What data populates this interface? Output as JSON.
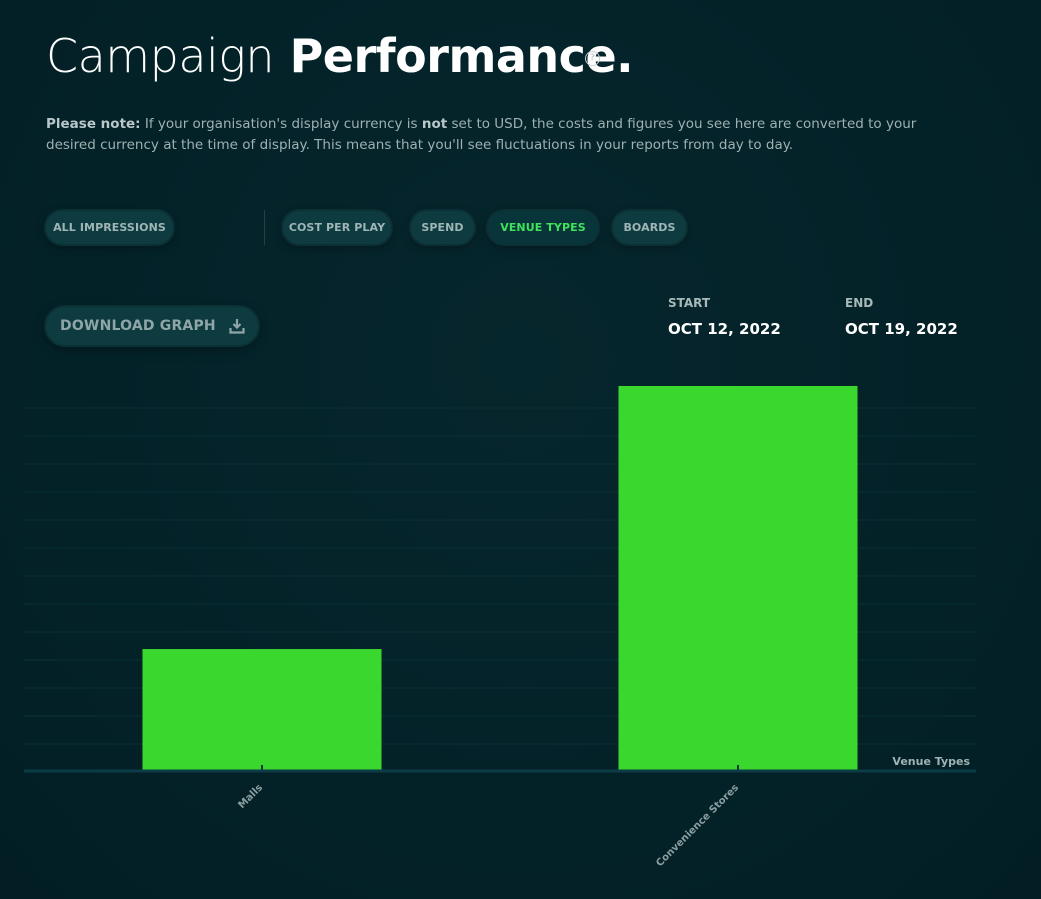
{
  "page": {
    "title_light": "Campaign",
    "title_bold": "Performance.",
    "help_icon": "question-circle-icon",
    "help_glyph": "?"
  },
  "note": {
    "label": "Please note:",
    "text_before": " If your organisation's display currency is ",
    "emphasis": "not",
    "text_after": " set to USD, the costs and figures you see here are converted to your desired currency at the time of display. This means that you'll see fluctuations in your reports from day to day."
  },
  "tabs": [
    {
      "label": "ALL IMPRESSIONS",
      "active": false
    },
    {
      "label": "COST PER PLAY",
      "active": false
    },
    {
      "label": "SPEND",
      "active": false
    },
    {
      "label": "VENUE TYPES",
      "active": true
    },
    {
      "label": "BOARDS",
      "active": false
    }
  ],
  "download": {
    "label": "DOWNLOAD GRAPH",
    "icon": "download-icon"
  },
  "date_range": {
    "start_label": "START",
    "start_value": "OCT 12, 2022",
    "end_label": "END",
    "end_value": "OCT 19, 2022"
  },
  "colors": {
    "accent": "#3fe25b",
    "bar": "#3ad82f",
    "background": "#032329",
    "pill": "#0e3b3f"
  },
  "chart_data": {
    "type": "bar",
    "categories": [
      "Malls",
      "Convenience Stores"
    ],
    "values": [
      31.5,
      100
    ],
    "xlabel": "Venue Types",
    "ylabel": "",
    "ylim": [
      0,
      100
    ],
    "grid": true,
    "legend": "none"
  }
}
